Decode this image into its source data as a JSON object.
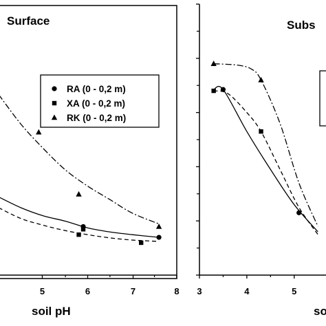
{
  "chart_data": [
    {
      "type": "scatter",
      "title": "Surface",
      "xlabel": "soil pH",
      "ylabel": "",
      "xlim": [
        4.0,
        8.0
      ],
      "ylim": [
        0,
        10
      ],
      "xticks": [
        "5",
        "6",
        "7",
        "8"
      ],
      "legend_position": "top-right",
      "series": [
        {
          "name": "RA (0 - 0,2 m)",
          "marker": "circle",
          "dash": "solid",
          "points": [
            {
              "x": 5.9,
              "y": 1.8
            },
            {
              "x": 7.6,
              "y": 1.4
            }
          ],
          "trend": [
            {
              "x": 4.0,
              "y": 2.9
            },
            {
              "x": 4.5,
              "y": 2.5
            },
            {
              "x": 5.0,
              "y": 2.2
            },
            {
              "x": 5.5,
              "y": 2.0
            },
            {
              "x": 6.0,
              "y": 1.75
            },
            {
              "x": 6.5,
              "y": 1.6
            },
            {
              "x": 7.0,
              "y": 1.5
            },
            {
              "x": 7.6,
              "y": 1.4
            }
          ]
        },
        {
          "name": "XA (0 - 0,2 m)",
          "marker": "square",
          "dash": "dashed",
          "points": [
            {
              "x": 5.8,
              "y": 1.5
            },
            {
              "x": 5.9,
              "y": 1.7
            },
            {
              "x": 7.2,
              "y": 1.2
            }
          ],
          "trend": [
            {
              "x": 4.0,
              "y": 2.5
            },
            {
              "x": 4.5,
              "y": 2.1
            },
            {
              "x": 5.0,
              "y": 1.85
            },
            {
              "x": 5.5,
              "y": 1.65
            },
            {
              "x": 6.0,
              "y": 1.5
            },
            {
              "x": 6.5,
              "y": 1.38
            },
            {
              "x": 7.0,
              "y": 1.3
            },
            {
              "x": 7.6,
              "y": 1.25
            }
          ]
        },
        {
          "name": "RK (0 - 0,2 m)",
          "marker": "triangle",
          "dash": "dash-dot",
          "points": [
            {
              "x": 4.9,
              "y": 5.3
            },
            {
              "x": 5.8,
              "y": 3.0
            },
            {
              "x": 7.6,
              "y": 1.8
            }
          ],
          "trend": [
            {
              "x": 4.0,
              "y": 6.7
            },
            {
              "x": 4.5,
              "y": 5.6
            },
            {
              "x": 5.0,
              "y": 4.7
            },
            {
              "x": 5.5,
              "y": 3.9
            },
            {
              "x": 6.0,
              "y": 3.3
            },
            {
              "x": 6.5,
              "y": 2.8
            },
            {
              "x": 7.0,
              "y": 2.3
            },
            {
              "x": 7.6,
              "y": 1.9
            }
          ]
        }
      ]
    },
    {
      "type": "scatter",
      "title": "Subs",
      "xlabel": "so",
      "ylabel": "",
      "xlim": [
        3.0,
        5.7
      ],
      "ylim": [
        0,
        10
      ],
      "xticks": [
        "3",
        "4",
        "5"
      ],
      "yticks": [
        0,
        2,
        4,
        6,
        8,
        10
      ],
      "series": [
        {
          "name": "",
          "marker": "circle",
          "dash": "solid",
          "points": [
            {
              "x": 3.5,
              "y": 6.85
            },
            {
              "x": 5.1,
              "y": 2.3
            }
          ],
          "trend": [
            {
              "x": 3.3,
              "y": 6.85
            },
            {
              "x": 3.5,
              "y": 6.85
            },
            {
              "x": 4.0,
              "y": 5.3
            },
            {
              "x": 4.5,
              "y": 3.9
            },
            {
              "x": 5.0,
              "y": 2.6
            },
            {
              "x": 5.5,
              "y": 1.6
            }
          ]
        },
        {
          "name": "",
          "marker": "square",
          "dash": "dashed",
          "points": [
            {
              "x": 3.3,
              "y": 6.8
            },
            {
              "x": 4.3,
              "y": 5.3
            }
          ],
          "trend": [
            {
              "x": 3.3,
              "y": 6.8
            },
            {
              "x": 3.6,
              "y": 6.7
            },
            {
              "x": 4.0,
              "y": 6.0
            },
            {
              "x": 4.3,
              "y": 5.3
            },
            {
              "x": 4.7,
              "y": 3.9
            },
            {
              "x": 5.1,
              "y": 2.5
            },
            {
              "x": 5.5,
              "y": 1.5
            }
          ]
        },
        {
          "name": "",
          "marker": "triangle",
          "dash": "dash-dot",
          "points": [
            {
              "x": 3.3,
              "y": 7.8
            },
            {
              "x": 4.3,
              "y": 7.2
            }
          ],
          "trend": [
            {
              "x": 3.3,
              "y": 7.8
            },
            {
              "x": 3.8,
              "y": 7.75
            },
            {
              "x": 4.1,
              "y": 7.6
            },
            {
              "x": 4.3,
              "y": 7.2
            },
            {
              "x": 4.7,
              "y": 5.6
            },
            {
              "x": 5.1,
              "y": 3.4
            },
            {
              "x": 5.5,
              "y": 1.8
            }
          ]
        }
      ]
    }
  ]
}
